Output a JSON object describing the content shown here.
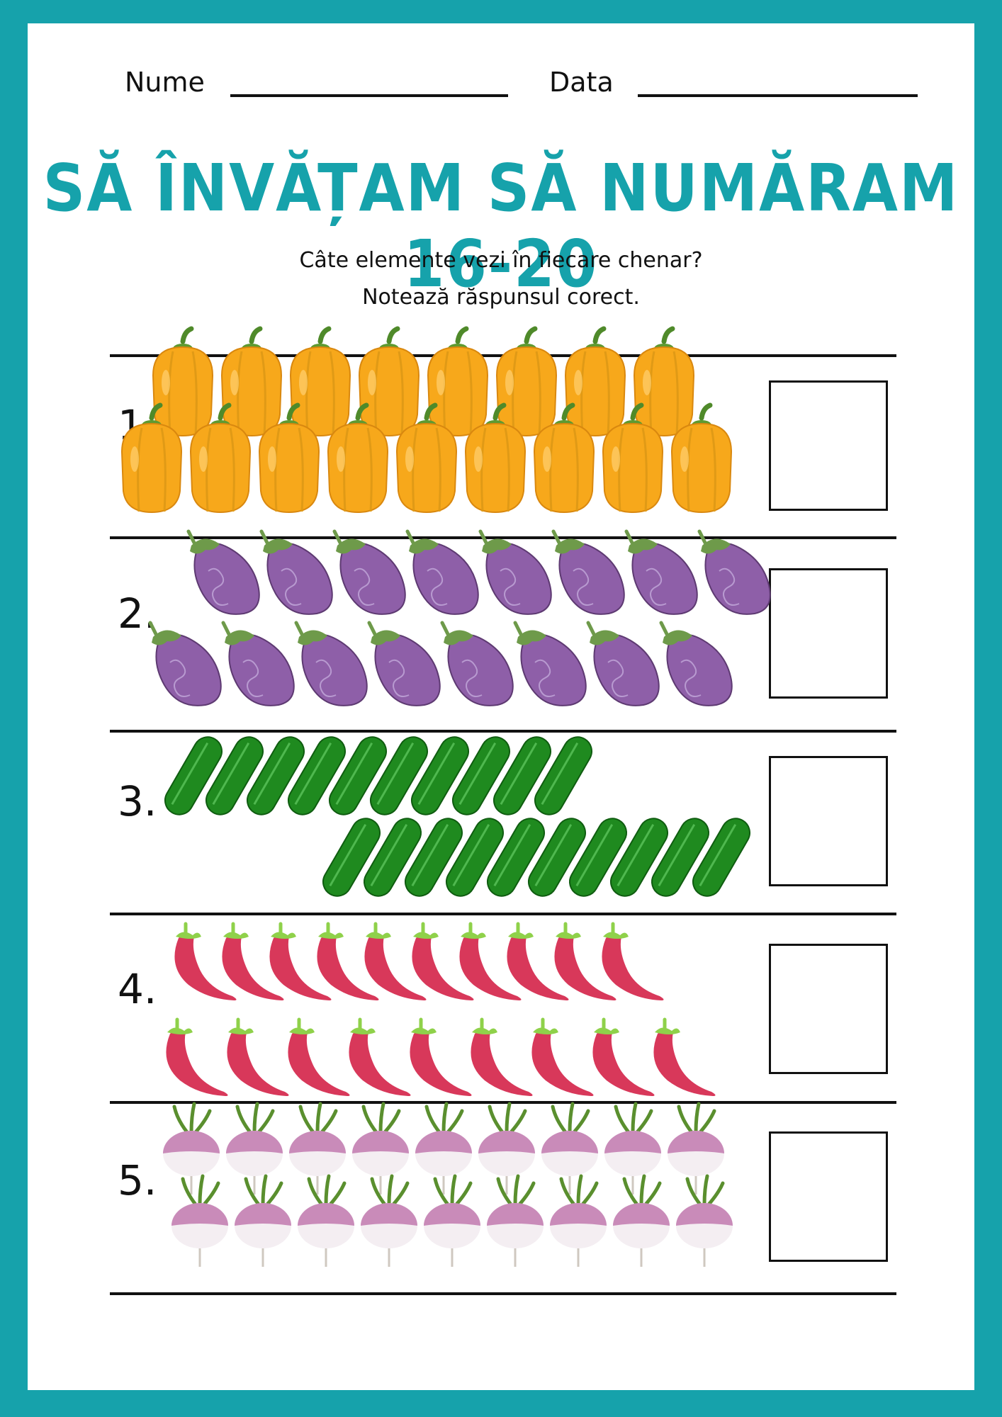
{
  "header": {
    "name_label": "Nume",
    "date_label": "Data"
  },
  "title": "SĂ ÎNVĂȚAM SĂ NUMĂRAM 16-20",
  "instructions": {
    "line1": "Câte elemente vezi în fiecare chenar?",
    "line2": "Notează răspunsul corect."
  },
  "exercises": [
    {
      "number": "1.",
      "item": "pepper-icon",
      "color": "#f7a81b",
      "rows": [
        8,
        9
      ]
    },
    {
      "number": "2.",
      "item": "eggplant-icon",
      "color": "#8e5fa8",
      "rows": [
        8,
        8
      ]
    },
    {
      "number": "3.",
      "item": "cucumber-icon",
      "color": "#1f8a1f",
      "rows": [
        10,
        10
      ]
    },
    {
      "number": "4.",
      "item": "chili-icon",
      "color": "#d8385a",
      "rows": [
        10,
        9
      ]
    },
    {
      "number": "5.",
      "item": "turnip-icon",
      "color": "#c98bb9",
      "rows": [
        9,
        9
      ]
    }
  ],
  "colors": {
    "accent": "#16a2ab"
  }
}
